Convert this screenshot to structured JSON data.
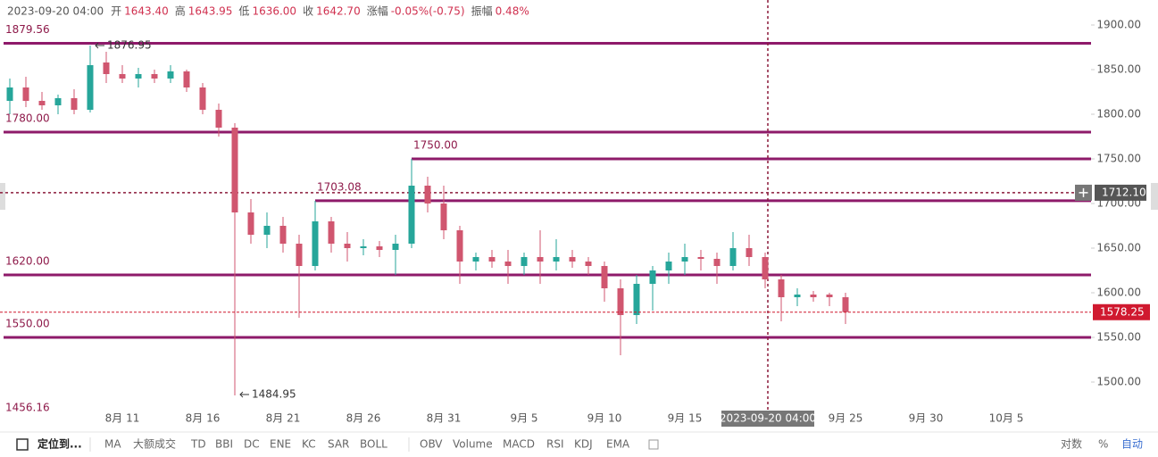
{
  "header": {
    "time": "2023-09-20 04:00",
    "items": [
      {
        "label": "开",
        "value": "1643.40"
      },
      {
        "label": "高",
        "value": "1643.95"
      },
      {
        "label": "低",
        "value": "1636.00"
      },
      {
        "label": "收",
        "value": "1642.70"
      },
      {
        "label": "涨幅",
        "value": "-0.05%(-0.75)"
      },
      {
        "label": "振幅",
        "value": "0.48%"
      }
    ]
  },
  "chart_data": {
    "type": "candlestick",
    "categories": [
      null,
      null,
      null,
      null,
      null,
      null,
      null,
      "8月 11",
      null,
      null,
      null,
      null,
      "8月 16",
      null,
      null,
      null,
      null,
      "8月 21",
      null,
      null,
      null,
      null,
      "8月 26",
      null,
      null,
      null,
      null,
      "8月 31",
      null,
      null,
      null,
      null,
      "9月 5",
      null,
      null,
      null,
      null,
      "9月 10",
      null,
      null,
      null,
      null,
      "9月 15",
      null,
      null,
      null,
      null,
      null,
      null,
      null,
      null,
      null,
      "9月 25",
      null,
      null,
      null,
      null,
      "9月 30",
      null,
      null,
      null,
      null,
      "10月 5",
      null,
      null,
      null,
      null,
      null
    ],
    "open": [
      1815,
      1830,
      1815,
      1810,
      1818,
      1805,
      1858,
      1845,
      1840,
      1845,
      1840,
      1848,
      1830,
      1805,
      1785,
      1690,
      1665,
      1675,
      1655,
      1630,
      1680,
      1655,
      1650,
      1652,
      1648,
      1655,
      1720,
      1700,
      1670,
      1635,
      1640,
      1635,
      1630,
      1640,
      1635,
      1640,
      1635,
      1630,
      1605,
      1575,
      1610,
      1625,
      1635,
      1640,
      1638,
      1630,
      1650,
      1640,
      1615,
      1595,
      1598,
      1598,
      1595,
      null,
      null,
      null,
      null,
      null,
      null,
      null,
      null,
      null,
      null,
      null,
      null,
      null,
      null,
      null
    ],
    "high": [
      1840,
      1842,
      1825,
      1822,
      1828,
      1876.95,
      1870,
      1855,
      1852,
      1850,
      1855,
      1850,
      1835,
      1812,
      1790,
      1705,
      1690,
      1685,
      1665,
      1703,
      1685,
      1668,
      1660,
      1658,
      1665,
      1750,
      1730,
      1720,
      1675,
      1645,
      1648,
      1648,
      1645,
      1670,
      1660,
      1648,
      1640,
      1635,
      1615,
      1620,
      1630,
      1645,
      1655,
      1648,
      1645,
      1668,
      1665,
      1645,
      1620,
      1605,
      1602,
      1600,
      1600,
      null,
      null,
      null,
      null,
      null,
      null,
      null,
      null,
      null,
      null,
      null,
      null,
      null,
      null,
      null
    ],
    "low": [
      1800,
      1808,
      1805,
      1800,
      1800,
      1802,
      1835,
      1835,
      1830,
      1835,
      1835,
      1825,
      1800,
      1775,
      1484.95,
      1655,
      1650,
      1645,
      1572,
      1625,
      1645,
      1635,
      1642,
      1640,
      1620,
      1650,
      1690,
      1660,
      1610,
      1625,
      1628,
      1610,
      1620,
      1610,
      1625,
      1628,
      1620,
      1590,
      1530,
      1565,
      1580,
      1610,
      1620,
      1625,
      1610,
      1625,
      1630,
      1605,
      1568,
      1585,
      1590,
      1585,
      1565,
      null,
      null,
      null,
      null,
      null,
      null,
      null,
      null,
      null,
      null,
      null,
      null,
      null,
      null,
      null
    ],
    "close": [
      1830,
      1815,
      1810,
      1818,
      1805,
      1855,
      1845,
      1840,
      1845,
      1840,
      1848,
      1830,
      1805,
      1785,
      1690,
      1665,
      1675,
      1655,
      1630,
      1680,
      1655,
      1650,
      1652,
      1648,
      1655,
      1720,
      1700,
      1670,
      1635,
      1640,
      1635,
      1630,
      1640,
      1635,
      1640,
      1635,
      1630,
      1605,
      1575,
      1610,
      1625,
      1635,
      1640,
      1638,
      1630,
      1650,
      1640,
      1615,
      1595,
      1598,
      1595,
      1595,
      1578.25,
      null,
      null,
      null,
      null,
      null,
      null,
      null,
      null,
      null,
      null,
      null,
      null,
      null,
      null,
      null
    ],
    "up_color": "#26a69a",
    "down_color": "#d0566f",
    "ylim": [
      1456.16,
      1928
    ],
    "yticks": [
      {
        "value": 1500,
        "label": "1500.00"
      },
      {
        "value": 1550,
        "label": "1550.00"
      },
      {
        "value": 1600,
        "label": "1600.00"
      },
      {
        "value": 1650,
        "label": "1650.00"
      },
      {
        "value": 1700,
        "label": "1700.00"
      },
      {
        "value": 1750,
        "label": "1750.00"
      },
      {
        "value": 1800,
        "label": "1800.00"
      },
      {
        "value": 1850,
        "label": "1850.00"
      },
      {
        "value": 1900,
        "label": "1900.00"
      }
    ],
    "levels": [
      {
        "value": 1879.56
      },
      {
        "value": 1780,
        "label": "1780.00"
      },
      {
        "value": 1750,
        "label": "1750.00",
        "from": 25
      },
      {
        "value": 1703.08,
        "from": 19
      },
      {
        "value": 1620,
        "label": "1620.00"
      },
      {
        "value": 1550,
        "label": "1550.00"
      }
    ],
    "level_color": "#8e1a6a",
    "crosshair": {
      "x_label": "2023-09-20 04:00",
      "y": {
        "value": 1712.1,
        "label": "1712.10"
      }
    }
  },
  "toolbar": {
    "left": [
      "定位到...",
      "MA",
      "大额成交",
      "TD",
      "BBI",
      "DC",
      "ENE",
      "KC",
      "SAR",
      "BOLL",
      "OBV",
      "Volume",
      "MACD",
      "RSI",
      "KDJ",
      "EMA"
    ],
    "right": [
      "对数",
      "%",
      "自动"
    ]
  }
}
